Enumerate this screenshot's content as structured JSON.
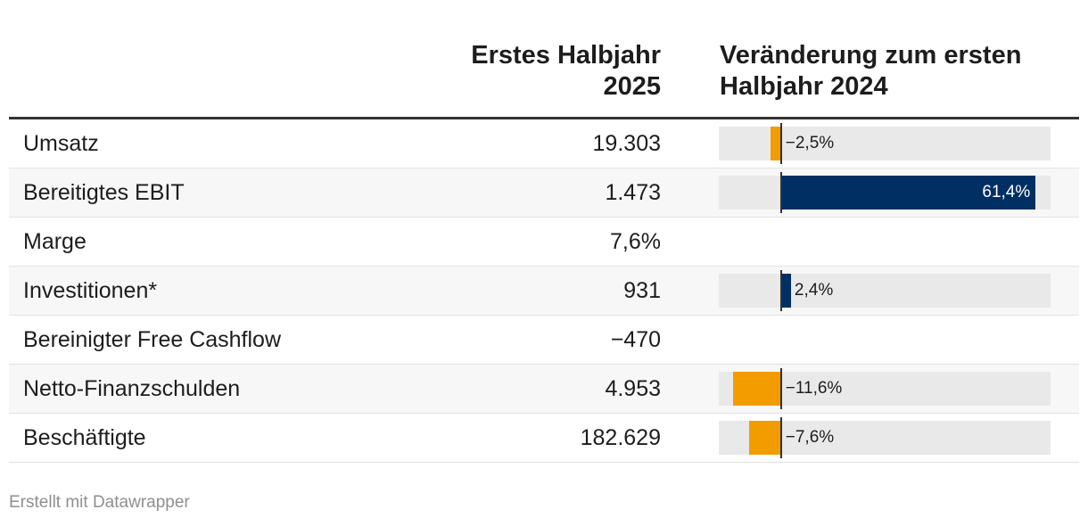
{
  "header": {
    "value_col_line1": "Erstes Halbjahr",
    "value_col_line2": "2025",
    "change_col_line1": "Veränderung zum ersten",
    "change_col_line2": "Halbjahr 2024"
  },
  "chart_data": {
    "type": "table",
    "columns": [
      "",
      "Erstes Halbjahr 2025",
      "Veränderung zum ersten Halbjahr 2024"
    ],
    "bar_domain": [
      -15,
      65
    ],
    "colors": {
      "positive": "#002f63",
      "negative": "#f29c00",
      "track": "#e9e9e9"
    },
    "rows": [
      {
        "label": "Umsatz",
        "value": "19.303",
        "change": -2.5,
        "change_label": "−2,5%"
      },
      {
        "label": "Bereitigtes EBIT",
        "value": "1.473",
        "change": 61.4,
        "change_label": "61,4%"
      },
      {
        "label": "Marge",
        "value": "7,6%",
        "change": null,
        "change_label": ""
      },
      {
        "label": "Investitionen*",
        "value": "931",
        "change": 2.4,
        "change_label": "2,4%"
      },
      {
        "label": "Bereinigter Free Cashflow",
        "value": "−470",
        "change": null,
        "change_label": ""
      },
      {
        "label": "Netto-Finanzschulden",
        "value": "4.953",
        "change": -11.6,
        "change_label": "−11,6%"
      },
      {
        "label": "Beschäftigte",
        "value": "182.629",
        "change": -7.6,
        "change_label": "−7,6%"
      }
    ]
  },
  "footer": {
    "credit": "Erstellt mit Datawrapper"
  }
}
